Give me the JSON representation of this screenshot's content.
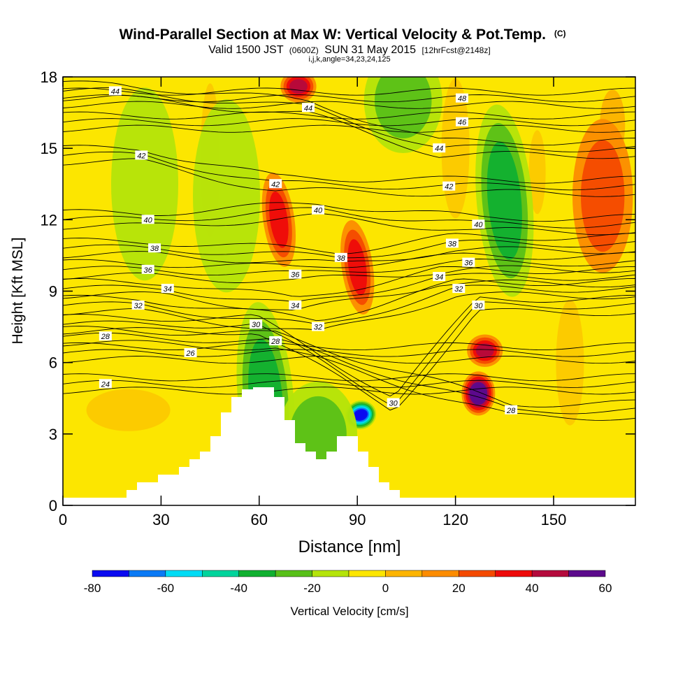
{
  "chart_data": {
    "type": "heatmap",
    "title": "Wind-Parallel Section at Max W: Vertical Velocity & Pot.Temp.",
    "title_mark": "(C)",
    "subtitle_left": "Valid 1500 JST",
    "subtitle_z": "(0600Z)",
    "subtitle_mid": "SUN 31 May 2015",
    "subtitle_fcst": "[12hrFcst@2148z]",
    "subtitle2": "i,j,k,angle=34,23,24,125",
    "xlabel": "Distance [nm]",
    "ylabel": "Height [Kft MSL]",
    "xlim": [
      0,
      175
    ],
    "ylim": [
      0,
      18
    ],
    "x_ticks": [
      0,
      30,
      60,
      90,
      120,
      150
    ],
    "y_ticks": [
      0,
      3,
      6,
      9,
      12,
      15,
      18
    ],
    "colorbar": {
      "label": "Vertical Velocity [cm/s]",
      "levels": [
        -80,
        -70,
        -60,
        -50,
        -40,
        -30,
        -20,
        -10,
        0,
        10,
        20,
        30,
        40,
        50,
        60
      ],
      "tick_labels": [
        -80,
        -60,
        -40,
        -20,
        0,
        20,
        40,
        60
      ],
      "colors": [
        "#0a0af0",
        "#0a7af5",
        "#00dcf5",
        "#00d49c",
        "#10b030",
        "#58c018",
        "#b4e40a",
        "#fce600",
        "#fcb400",
        "#fc8c00",
        "#f44a00",
        "#ee0a0a",
        "#b40a3c",
        "#5c0a8c"
      ]
    },
    "vertical_velocity_features": [
      {
        "x": 91,
        "y": 3.8,
        "w": -80
      },
      {
        "x": 127,
        "y": 4.7,
        "w": 60
      },
      {
        "x": 129,
        "y": 6.5,
        "w": 40
      },
      {
        "x": 66,
        "y": 12.0,
        "w": 30
      },
      {
        "x": 72,
        "y": 17.6,
        "w": 40
      },
      {
        "x": 90,
        "y": 10.0,
        "w": 30
      },
      {
        "x": 104,
        "y": 17.0,
        "w": -20
      },
      {
        "x": 135,
        "y": 12.8,
        "w": -30
      },
      {
        "x": 62,
        "y": 4.5,
        "w": -30
      },
      {
        "x": 78,
        "y": 3.0,
        "w": -20
      },
      {
        "x": 50,
        "y": 13.0,
        "w": -10
      },
      {
        "x": 25,
        "y": 13.5,
        "w": -10
      },
      {
        "x": 165,
        "y": 13.0,
        "w": 20
      }
    ],
    "isentrope_labels": [
      {
        "v": "44",
        "x": 16,
        "y": 17.4
      },
      {
        "v": "44",
        "x": 75,
        "y": 16.7
      },
      {
        "v": "48",
        "x": 122,
        "y": 17.1
      },
      {
        "v": "46",
        "x": 122,
        "y": 16.1
      },
      {
        "v": "44",
        "x": 115,
        "y": 15.0
      },
      {
        "v": "42",
        "x": 24,
        "y": 14.7
      },
      {
        "v": "42",
        "x": 65,
        "y": 13.5
      },
      {
        "v": "42",
        "x": 118,
        "y": 13.4
      },
      {
        "v": "40",
        "x": 26,
        "y": 12.0
      },
      {
        "v": "40",
        "x": 78,
        "y": 12.4
      },
      {
        "v": "40",
        "x": 127,
        "y": 11.8
      },
      {
        "v": "38",
        "x": 28,
        "y": 10.8
      },
      {
        "v": "38",
        "x": 119,
        "y": 11.0
      },
      {
        "v": "38",
        "x": 85,
        "y": 10.4
      },
      {
        "v": "36",
        "x": 26,
        "y": 9.9
      },
      {
        "v": "36",
        "x": 71,
        "y": 9.7
      },
      {
        "v": "36",
        "x": 124,
        "y": 10.2
      },
      {
        "v": "34",
        "x": 32,
        "y": 9.1
      },
      {
        "v": "34",
        "x": 71,
        "y": 8.4
      },
      {
        "v": "34",
        "x": 115,
        "y": 9.6
      },
      {
        "v": "32",
        "x": 23,
        "y": 8.4
      },
      {
        "v": "32",
        "x": 78,
        "y": 7.5
      },
      {
        "v": "32",
        "x": 121,
        "y": 9.1
      },
      {
        "v": "30",
        "x": 59,
        "y": 7.6
      },
      {
        "v": "30",
        "x": 127,
        "y": 8.4
      },
      {
        "v": "30",
        "x": 101,
        "y": 4.3
      },
      {
        "v": "28",
        "x": 13,
        "y": 7.1
      },
      {
        "v": "28",
        "x": 65,
        "y": 6.9
      },
      {
        "v": "28",
        "x": 137,
        "y": 4.0
      },
      {
        "v": "26",
        "x": 39,
        "y": 6.4
      },
      {
        "v": "24",
        "x": 13,
        "y": 5.1
      }
    ]
  }
}
